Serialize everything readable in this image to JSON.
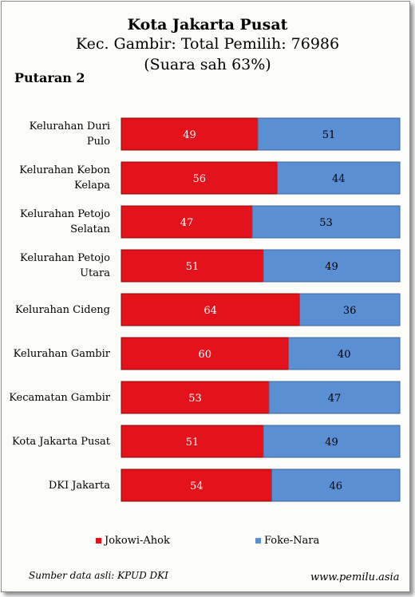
{
  "chart_data": {
    "type": "bar",
    "stacked": true,
    "orientation": "horizontal",
    "title": "Kota Jakarta Pusat",
    "subtitle_line1": "Kec. Gambir: Total Pemilih: 76986",
    "subtitle_line2": "(Suara sah 63%)",
    "round_label": "Putaran 2",
    "categories": [
      "Kelurahan Duri Pulo",
      "Kelurahan Kebon Kelapa",
      "Kelurahan Petojo Selatan",
      "Kelurahan Petojo Utara",
      "Kelurahan Cideng",
      "Kelurahan Gambir",
      "Kecamatan Gambir",
      "Kota Jakarta Pusat",
      "DKI Jakarta"
    ],
    "category_lines": [
      [
        "Kelurahan Duri",
        "Pulo"
      ],
      [
        "Kelurahan Kebon",
        "Kelapa"
      ],
      [
        "Kelurahan Petojo",
        "Selatan"
      ],
      [
        "Kelurahan Petojo",
        "Utara"
      ],
      [
        "Kelurahan Cideng"
      ],
      [
        "Kelurahan Gambir"
      ],
      [
        "Kecamatan Gambir"
      ],
      [
        "Kota Jakarta Pusat"
      ],
      [
        "DKI Jakarta"
      ]
    ],
    "series": [
      {
        "name": "Jokowi-Ahok",
        "color": "#e3121b",
        "values": [
          49,
          56,
          47,
          51,
          64,
          60,
          53,
          51,
          54
        ]
      },
      {
        "name": "Foke-Nara",
        "color": "#5a8fd4",
        "values": [
          51,
          44,
          53,
          49,
          36,
          40,
          47,
          49,
          46
        ]
      }
    ],
    "xlim": [
      0,
      100
    ],
    "grid": false,
    "legend_position": "bottom"
  },
  "footer": {
    "source": "Sumber data asli: KPUD DKI",
    "website": "www.pemilu.asia"
  }
}
